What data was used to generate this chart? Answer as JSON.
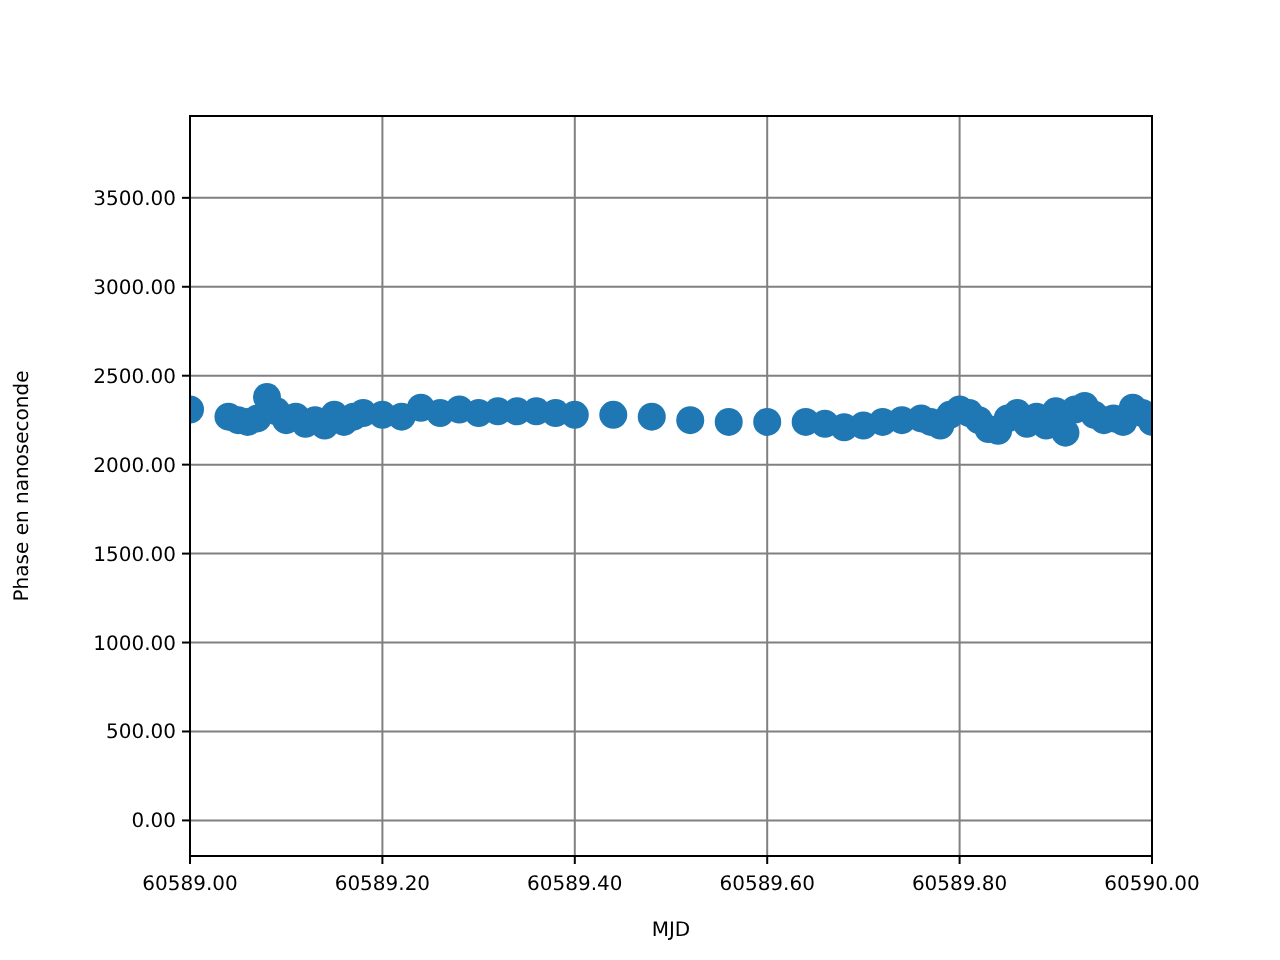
{
  "chart_data": {
    "type": "scatter",
    "xlabel": "MJD",
    "ylabel": "Phase en nanoseconde",
    "xlim": [
      60589.0,
      60590.0
    ],
    "xticks": [
      {
        "value": 60589.0,
        "label": "60589.00"
      },
      {
        "value": 60589.2,
        "label": "60589.20"
      },
      {
        "value": 60589.4,
        "label": "60589.40"
      },
      {
        "value": 60589.6,
        "label": "60589.60"
      },
      {
        "value": 60589.8,
        "label": "60589.80"
      },
      {
        "value": 60590.0,
        "label": "60590.00"
      }
    ],
    "ylim": [
      -200,
      3960
    ],
    "yticks": [
      {
        "value": 0,
        "label": "0.00"
      },
      {
        "value": 500,
        "label": "500.00"
      },
      {
        "value": 1000,
        "label": "1000.00"
      },
      {
        "value": 1500,
        "label": "1500.00"
      },
      {
        "value": 2000,
        "label": "2000.00"
      },
      {
        "value": 2500,
        "label": "2500.00"
      },
      {
        "value": 3000,
        "label": "3000.00"
      },
      {
        "value": 3500,
        "label": "3500.00"
      }
    ],
    "grid": true,
    "marker": "circle",
    "series": [
      {
        "color": "#1f77b4",
        "x": [
          60589.0,
          60589.04,
          60589.05,
          60589.06,
          60589.07,
          60589.08,
          60589.09,
          60589.1,
          60589.11,
          60589.12,
          60589.13,
          60589.14,
          60589.15,
          60589.16,
          60589.17,
          60589.18,
          60589.2,
          60589.22,
          60589.24,
          60589.26,
          60589.28,
          60589.3,
          60589.32,
          60589.34,
          60589.36,
          60589.38,
          60589.4,
          60589.44,
          60589.48,
          60589.52,
          60589.56,
          60589.6,
          60589.64,
          60589.66,
          60589.68,
          60589.7,
          60589.72,
          60589.74,
          60589.76,
          60589.77,
          60589.78,
          60589.79,
          60589.8,
          60589.81,
          60589.82,
          60589.83,
          60589.84,
          60589.85,
          60589.86,
          60589.87,
          60589.88,
          60589.89,
          60589.9,
          60589.91,
          60589.92,
          60589.93,
          60589.94,
          60589.95,
          60589.96,
          60589.97,
          60589.98,
          60589.99,
          60590.0
        ],
        "values": [
          2310,
          2270,
          2250,
          2240,
          2260,
          2380,
          2300,
          2250,
          2270,
          2230,
          2250,
          2220,
          2280,
          2240,
          2270,
          2290,
          2280,
          2270,
          2320,
          2290,
          2310,
          2290,
          2300,
          2300,
          2300,
          2290,
          2280,
          2280,
          2270,
          2250,
          2240,
          2240,
          2240,
          2230,
          2210,
          2220,
          2240,
          2250,
          2260,
          2240,
          2220,
          2280,
          2310,
          2290,
          2250,
          2200,
          2190,
          2260,
          2290,
          2230,
          2270,
          2220,
          2300,
          2180,
          2310,
          2330,
          2280,
          2250,
          2260,
          2240,
          2320,
          2290,
          2240
        ]
      }
    ]
  }
}
